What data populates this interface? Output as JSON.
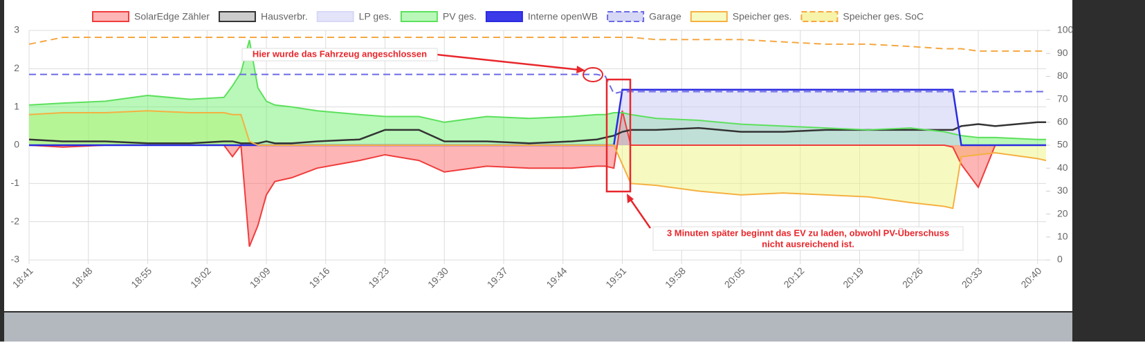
{
  "chart_data": {
    "type": "line",
    "x": [
      "18:41",
      "18:45",
      "18:50",
      "18:55",
      "19:00",
      "19:04",
      "19:05",
      "19:06",
      "19:07",
      "19:08",
      "19:09",
      "19:10",
      "19:12",
      "19:15",
      "19:20",
      "19:23",
      "19:27",
      "19:30",
      "19:35",
      "19:40",
      "19:45",
      "19:48",
      "19:49",
      "19:50",
      "19:51",
      "19:52",
      "19:55",
      "20:00",
      "20:05",
      "20:10",
      "20:15",
      "20:20",
      "20:25",
      "20:29",
      "20:30",
      "20:31",
      "20:33",
      "20:35",
      "20:40",
      "20:41"
    ],
    "xlim": [
      "18:41",
      "20:41"
    ],
    "xticks": [
      "18:41",
      "18:48",
      "18:55",
      "19:02",
      "19:09",
      "19:16",
      "19:23",
      "19:30",
      "19:37",
      "19:44",
      "19:51",
      "19:58",
      "20:05",
      "20:12",
      "20:19",
      "20:26",
      "20:33",
      "20:40"
    ],
    "ylim": [
      -3,
      3
    ],
    "yticks": [
      -3,
      -2,
      -1,
      0,
      1,
      2,
      3
    ],
    "y2lim": [
      0,
      100
    ],
    "y2ticks": [
      0,
      10,
      20,
      30,
      40,
      50,
      60,
      70,
      80,
      90,
      100
    ],
    "grid": true,
    "series": [
      {
        "name": "SolarEdge Zähler",
        "color": "#f03c3c",
        "fill": "rgba(250,90,90,0.45)",
        "values": [
          0,
          -0.05,
          0,
          0,
          0,
          0,
          -0.3,
          0,
          -2.65,
          -2.1,
          -1.3,
          -0.95,
          -0.85,
          -0.6,
          -0.4,
          -0.25,
          -0.4,
          -0.7,
          -0.55,
          -0.6,
          -0.6,
          -0.55,
          -0.55,
          -0.6,
          0.9,
          0,
          0,
          0,
          0,
          0,
          0,
          0,
          0,
          0,
          -0.05,
          -0.5,
          -1.1,
          0,
          0,
          0
        ]
      },
      {
        "name": "Hausverbr.",
        "color": "#333333",
        "fill": "#cccccc",
        "values": [
          0.15,
          0.1,
          0.1,
          0.05,
          0.05,
          0.1,
          0.1,
          0.05,
          0.05,
          0.05,
          0.1,
          0.05,
          0.05,
          0.1,
          0.15,
          0.4,
          0.4,
          0.1,
          0.1,
          0.05,
          0.1,
          0.15,
          0.2,
          0.25,
          0.35,
          0.4,
          0.4,
          0.45,
          0.35,
          0.35,
          0.4,
          0.4,
          0.4,
          0.4,
          0.4,
          0.5,
          0.55,
          0.5,
          0.6,
          0.6
        ]
      },
      {
        "name": "LP ges.",
        "color": "#d6d8f5",
        "fill": "rgba(200,200,245,0.5)",
        "values": [
          0,
          0,
          0,
          0,
          0,
          0,
          0,
          0,
          0,
          0,
          0,
          0,
          0,
          0,
          0,
          0,
          0,
          0,
          0,
          0,
          0,
          0,
          0,
          0,
          1.45,
          1.45,
          1.45,
          1.45,
          1.45,
          1.45,
          1.45,
          1.45,
          1.45,
          1.45,
          1.45,
          0,
          0,
          0,
          0,
          0
        ]
      },
      {
        "name": "PV ges.",
        "color": "#5ce05c",
        "fill": "rgba(100,240,100,0.45)",
        "values": [
          1.05,
          1.1,
          1.15,
          1.3,
          1.2,
          1.25,
          1.55,
          1.9,
          2.75,
          1.5,
          1.15,
          1.05,
          1.0,
          0.9,
          0.8,
          0.75,
          0.75,
          0.6,
          0.75,
          0.7,
          0.75,
          0.8,
          0.8,
          0.85,
          0.85,
          0.8,
          0.7,
          0.65,
          0.55,
          0.5,
          0.45,
          0.4,
          0.45,
          0.35,
          0.3,
          0.25,
          0.2,
          0.2,
          0.15,
          0.15
        ]
      },
      {
        "name": "Interne openWB",
        "color": "#2b2be0",
        "fill": "#3a3ae8",
        "values": [
          0,
          0,
          0,
          0,
          0,
          0,
          0,
          0,
          0,
          0,
          0,
          0,
          0,
          0,
          0,
          0,
          0,
          0,
          0,
          0,
          0,
          0,
          0,
          0,
          1.45,
          1.45,
          1.45,
          1.45,
          1.45,
          1.45,
          1.45,
          1.45,
          1.45,
          1.45,
          1.45,
          0,
          0,
          0,
          0,
          0
        ]
      },
      {
        "name": "Garage",
        "color": "#6a6ae6",
        "fill": "#d6d8f5",
        "dashed": true,
        "values": [
          1.85,
          1.85,
          1.85,
          1.85,
          1.85,
          1.85,
          1.85,
          1.85,
          1.85,
          1.85,
          1.85,
          1.85,
          1.85,
          1.85,
          1.85,
          1.85,
          1.85,
          1.85,
          1.85,
          1.85,
          1.85,
          1.85,
          1.8,
          1.35,
          1.4,
          1.4,
          1.4,
          1.4,
          1.4,
          1.4,
          1.4,
          1.4,
          1.4,
          1.4,
          1.4,
          1.4,
          1.4,
          1.4,
          1.4,
          1.4
        ]
      },
      {
        "name": "Speicher ges.",
        "color": "#f5b041",
        "fill": "rgba(240,245,130,0.5)",
        "values": [
          0.8,
          0.85,
          0.85,
          0.9,
          0.85,
          0.85,
          0.8,
          0.8,
          0.1,
          0,
          0,
          0,
          0,
          0,
          0,
          0,
          0,
          0,
          0,
          0,
          0,
          0,
          0,
          0,
          -0.5,
          -1.0,
          -1.05,
          -1.2,
          -1.3,
          -1.25,
          -1.3,
          -1.35,
          -1.5,
          -1.6,
          -1.65,
          -0.3,
          -0.25,
          -0.2,
          -0.35,
          -0.4
        ]
      },
      {
        "name": "Speicher ges. SoC",
        "color": "#f5a742",
        "fill": "#f7f3a8",
        "dashed": true,
        "axis": "y2",
        "values": [
          94,
          97,
          97,
          97,
          97,
          97,
          97,
          97,
          97,
          97,
          97,
          97,
          97,
          97,
          97,
          97,
          97,
          97,
          97,
          97,
          97,
          97,
          97,
          97,
          97,
          97,
          96,
          96,
          96,
          95,
          94,
          94,
          93,
          92,
          92,
          92,
          91,
          91,
          91,
          91
        ]
      }
    ],
    "annotations": [
      "Hier wurde das Fahrzeug angeschlossen",
      "3 Minuten später beginnt das EV zu laden, obwohl PV-Überschuss",
      "nicht ausreichend ist."
    ]
  }
}
